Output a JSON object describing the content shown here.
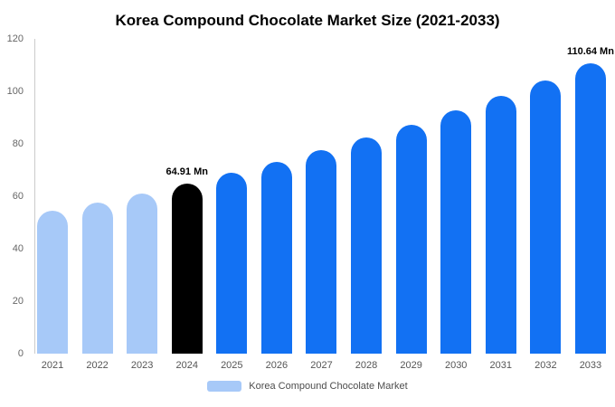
{
  "chart_data": {
    "type": "bar",
    "title": "Korea Compound Chocolate Market Size (2021-2033)",
    "categories": [
      "2021",
      "2022",
      "2023",
      "2024",
      "2025",
      "2026",
      "2027",
      "2028",
      "2029",
      "2030",
      "2031",
      "2032",
      "2033"
    ],
    "values": [
      54.35,
      57.66,
      61.18,
      64.91,
      68.87,
      73.07,
      77.53,
      82.26,
      87.28,
      92.6,
      98.25,
      104.24,
      110.64
    ],
    "bar_colors": [
      "#a7c9f8",
      "#a7c9f8",
      "#a7c9f8",
      "#000000",
      "#1271f3",
      "#1271f3",
      "#1271f3",
      "#1271f3",
      "#1271f3",
      "#1271f3",
      "#1271f3",
      "#1271f3",
      "#1271f3"
    ],
    "annotations": [
      {
        "index": 3,
        "text": "64.91 Mn"
      },
      {
        "index": 12,
        "text": "110.64 Mn"
      }
    ],
    "xlabel": "",
    "ylabel": "",
    "ylim": [
      0,
      120
    ],
    "yticks": [
      0,
      20,
      40,
      60,
      80,
      100,
      120
    ],
    "grid": false,
    "legend_position": "bottom",
    "legend": {
      "swatch_color": "#a7c9f8",
      "label": "Korea Compound Chocolate Market"
    }
  }
}
